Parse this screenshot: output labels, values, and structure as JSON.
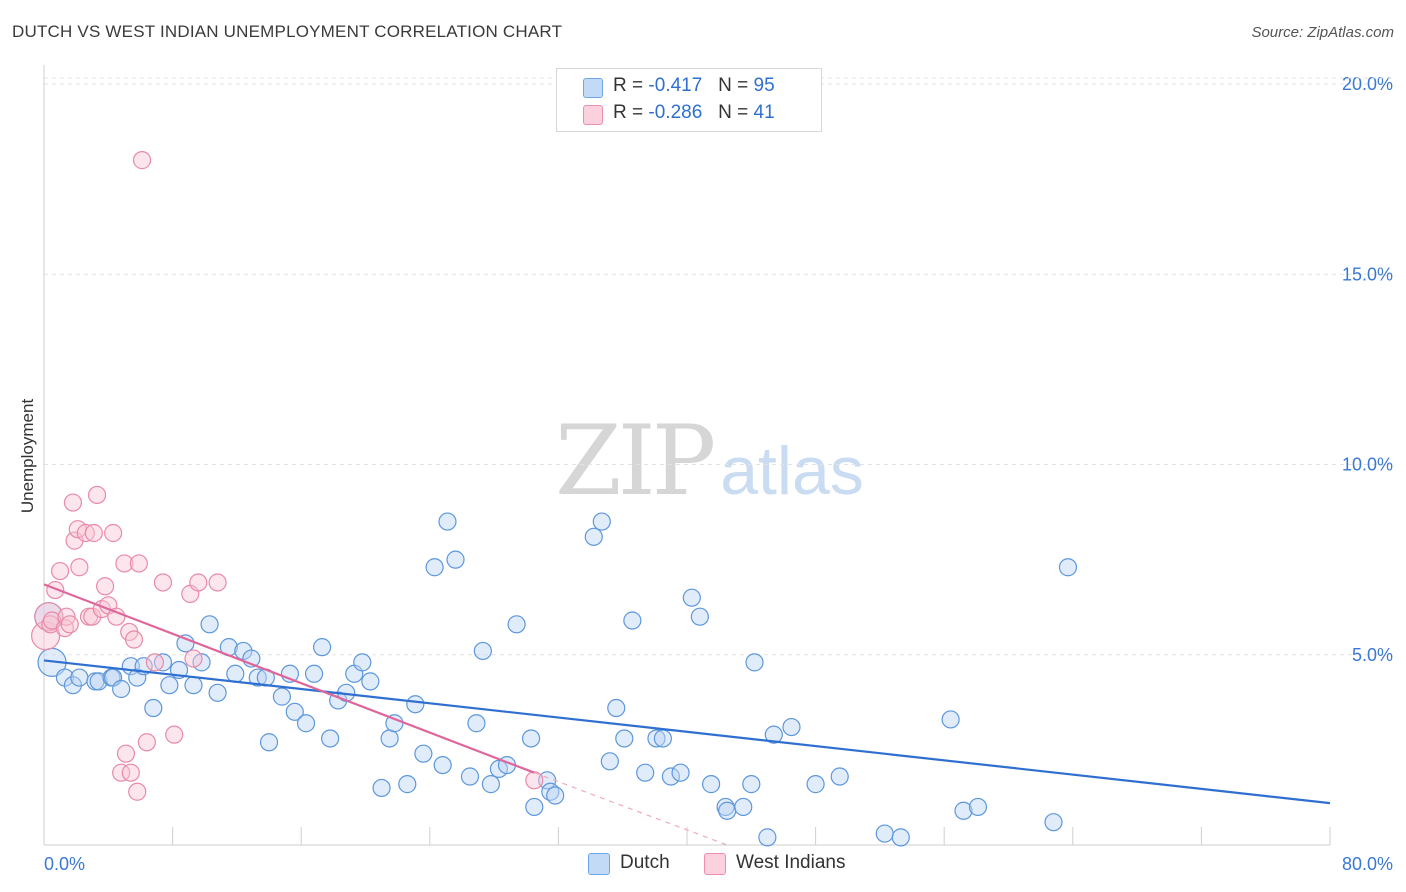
{
  "title": "DUTCH VS WEST INDIAN UNEMPLOYMENT CORRELATION CHART",
  "source": "Source: ZipAtlas.com",
  "watermark": {
    "part1": "ZIP",
    "part2": "atlas"
  },
  "legend": {
    "rows": [
      {
        "r_label": "R =",
        "r_value": "-0.417",
        "n_label": "N =",
        "n_value": "95",
        "color": "#9ec3f0"
      },
      {
        "r_label": "R =",
        "r_value": "-0.286",
        "n_label": "N =",
        "n_value": "41",
        "color": "#f7b8ca"
      }
    ]
  },
  "bottom_legend": [
    {
      "label": "Dutch",
      "color": "#9ec3f0"
    },
    {
      "label": "West Indians",
      "color": "#f7b8ca"
    }
  ],
  "chart_data": {
    "type": "scatter",
    "title": "DUTCH VS WEST INDIAN UNEMPLOYMENT CORRELATION CHART",
    "xlabel": "",
    "ylabel": "Unemployment",
    "xlim": [
      0,
      80
    ],
    "ylim": [
      0,
      20.5
    ],
    "x_tick_labels": [
      "0.0%",
      "80.0%"
    ],
    "y_ticks": [
      5,
      10,
      15,
      20
    ],
    "y_tick_labels": [
      "5.0%",
      "10.0%",
      "15.0%",
      "20.0%"
    ],
    "grid": "horizontal dashed",
    "legend_position": "top-center",
    "colors": {
      "dutch": "#4a90e2",
      "west_indians": "#e8739a",
      "dutch_line": "#2f6fd0",
      "west_indians_line": "#e0659a"
    },
    "series": [
      {
        "name": "Dutch",
        "trend": {
          "x": [
            0,
            80
          ],
          "y": [
            4.85,
            1.1
          ]
        },
        "points": [
          [
            0.3,
            6.0
          ],
          [
            0.5,
            4.8
          ],
          [
            1.3,
            4.4
          ],
          [
            1.8,
            4.2
          ],
          [
            2.2,
            4.4
          ],
          [
            3.2,
            4.3
          ],
          [
            3.4,
            4.3
          ],
          [
            4.2,
            4.4
          ],
          [
            4.3,
            4.4
          ],
          [
            4.8,
            4.1
          ],
          [
            5.4,
            4.7
          ],
          [
            5.8,
            4.4
          ],
          [
            6.2,
            4.7
          ],
          [
            6.8,
            3.6
          ],
          [
            7.4,
            4.8
          ],
          [
            7.8,
            4.2
          ],
          [
            8.4,
            4.6
          ],
          [
            8.8,
            5.3
          ],
          [
            9.3,
            4.2
          ],
          [
            9.8,
            4.8
          ],
          [
            10.3,
            5.8
          ],
          [
            10.8,
            4.0
          ],
          [
            11.5,
            5.2
          ],
          [
            11.9,
            4.5
          ],
          [
            12.4,
            5.1
          ],
          [
            12.9,
            4.9
          ],
          [
            13.3,
            4.4
          ],
          [
            13.8,
            4.4
          ],
          [
            14.0,
            2.7
          ],
          [
            14.8,
            3.9
          ],
          [
            15.3,
            4.5
          ],
          [
            15.6,
            3.5
          ],
          [
            16.3,
            3.2
          ],
          [
            16.8,
            4.5
          ],
          [
            17.3,
            5.2
          ],
          [
            17.8,
            2.8
          ],
          [
            18.3,
            3.8
          ],
          [
            18.8,
            4.0
          ],
          [
            19.3,
            4.5
          ],
          [
            19.8,
            4.8
          ],
          [
            20.3,
            4.3
          ],
          [
            21.0,
            1.5
          ],
          [
            21.5,
            2.8
          ],
          [
            21.8,
            3.2
          ],
          [
            22.6,
            1.6
          ],
          [
            23.1,
            3.7
          ],
          [
            23.6,
            2.4
          ],
          [
            24.3,
            7.3
          ],
          [
            24.8,
            2.1
          ],
          [
            25.1,
            8.5
          ],
          [
            25.6,
            7.5
          ],
          [
            26.5,
            1.8
          ],
          [
            26.9,
            3.2
          ],
          [
            27.3,
            5.1
          ],
          [
            27.8,
            1.6
          ],
          [
            28.3,
            2.0
          ],
          [
            28.8,
            2.1
          ],
          [
            29.4,
            5.8
          ],
          [
            30.3,
            2.8
          ],
          [
            30.5,
            1.0
          ],
          [
            31.3,
            1.7
          ],
          [
            31.5,
            1.4
          ],
          [
            31.8,
            1.3
          ],
          [
            34.2,
            8.1
          ],
          [
            34.7,
            8.5
          ],
          [
            35.2,
            2.2
          ],
          [
            35.6,
            3.6
          ],
          [
            36.1,
            2.8
          ],
          [
            36.6,
            5.9
          ],
          [
            37.4,
            1.9
          ],
          [
            38.1,
            2.8
          ],
          [
            38.5,
            2.8
          ],
          [
            39.0,
            1.8
          ],
          [
            39.6,
            1.9
          ],
          [
            40.3,
            6.5
          ],
          [
            40.8,
            6.0
          ],
          [
            41.5,
            1.6
          ],
          [
            42.4,
            1.0
          ],
          [
            42.5,
            0.9
          ],
          [
            43.5,
            1.0
          ],
          [
            44.0,
            1.6
          ],
          [
            44.2,
            4.8
          ],
          [
            45.0,
            0.2
          ],
          [
            45.4,
            2.9
          ],
          [
            46.5,
            3.1
          ],
          [
            48.0,
            1.6
          ],
          [
            49.5,
            1.8
          ],
          [
            52.3,
            0.3
          ],
          [
            53.3,
            0.2
          ],
          [
            56.4,
            3.3
          ],
          [
            57.2,
            0.9
          ],
          [
            58.1,
            1.0
          ],
          [
            62.8,
            0.6
          ],
          [
            63.7,
            7.3
          ]
        ]
      },
      {
        "name": "West Indians",
        "trend": {
          "x": [
            0,
            30.5
          ],
          "y": [
            6.85,
            1.9
          ],
          "dashed_extension": {
            "x": [
              30.5,
              42.5
            ],
            "y": [
              1.9,
              0.0
            ]
          }
        },
        "points": [
          [
            0.1,
            5.5
          ],
          [
            0.3,
            6.0
          ],
          [
            0.4,
            5.8
          ],
          [
            0.5,
            5.9
          ],
          [
            0.7,
            6.7
          ],
          [
            1.0,
            7.2
          ],
          [
            1.3,
            5.7
          ],
          [
            1.4,
            6.0
          ],
          [
            1.6,
            5.8
          ],
          [
            1.8,
            9.0
          ],
          [
            1.9,
            8.0
          ],
          [
            2.1,
            8.3
          ],
          [
            2.2,
            7.3
          ],
          [
            2.6,
            8.2
          ],
          [
            2.8,
            6.0
          ],
          [
            3.0,
            6.0
          ],
          [
            3.1,
            8.2
          ],
          [
            3.3,
            9.2
          ],
          [
            3.6,
            6.2
          ],
          [
            3.8,
            6.8
          ],
          [
            4.0,
            6.3
          ],
          [
            4.3,
            8.2
          ],
          [
            4.5,
            6.0
          ],
          [
            4.8,
            1.9
          ],
          [
            5.0,
            7.4
          ],
          [
            5.1,
            2.4
          ],
          [
            5.3,
            5.6
          ],
          [
            5.4,
            1.9
          ],
          [
            5.6,
            5.4
          ],
          [
            5.8,
            1.4
          ],
          [
            5.9,
            7.4
          ],
          [
            6.1,
            18.0
          ],
          [
            6.4,
            2.7
          ],
          [
            6.9,
            4.8
          ],
          [
            7.4,
            6.9
          ],
          [
            8.1,
            2.9
          ],
          [
            9.1,
            6.6
          ],
          [
            9.3,
            4.9
          ],
          [
            9.6,
            6.9
          ],
          [
            10.8,
            6.9
          ],
          [
            30.5,
            1.7
          ]
        ]
      }
    ]
  }
}
